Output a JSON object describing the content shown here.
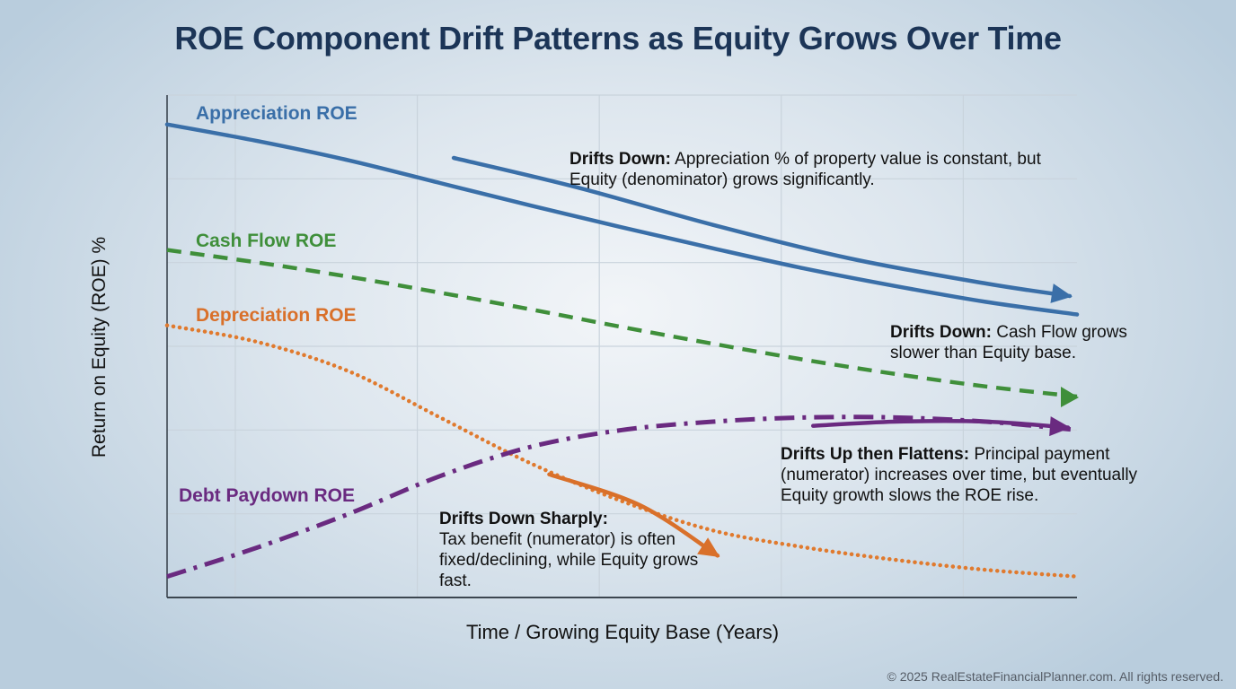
{
  "chart_data": {
    "type": "line",
    "title": "ROE Component Drift Patterns as Equity Grows Over Time",
    "xlabel": "Time / Growing Equity Base (Years)",
    "ylabel": "Return on Equity (ROE) %",
    "x_ticks_shown": false,
    "y_ticks_shown": false,
    "grid": true,
    "xlim": [
      0,
      10
    ],
    "ylim": [
      0,
      6
    ],
    "x_gridlines": [
      0.75,
      2.75,
      4.75,
      6.75,
      8.75
    ],
    "y_gridlines": [
      1,
      2,
      3,
      4,
      5,
      6
    ],
    "series": [
      {
        "name": "Appreciation ROE",
        "style": "solid",
        "color": "#3a6fa8",
        "x": [
          0,
          1,
          2,
          3,
          4,
          5,
          6,
          7,
          8,
          9,
          10
        ],
        "values": [
          5.65,
          5.45,
          5.22,
          4.95,
          4.68,
          4.42,
          4.17,
          3.93,
          3.72,
          3.53,
          3.38
        ]
      },
      {
        "name": "Cash Flow ROE",
        "style": "dashed",
        "color": "#3f8f3a",
        "x": [
          0,
          1,
          2,
          3,
          4,
          5,
          6,
          7,
          8,
          9,
          10
        ],
        "values": [
          4.15,
          4.0,
          3.83,
          3.64,
          3.44,
          3.23,
          3.03,
          2.84,
          2.67,
          2.52,
          2.4
        ]
      },
      {
        "name": "Depreciation ROE",
        "style": "dotted",
        "color": "#e07a2e",
        "x": [
          0,
          1,
          2,
          3,
          4,
          5,
          6,
          7,
          8,
          9,
          10
        ],
        "values": [
          3.25,
          3.05,
          2.7,
          2.15,
          1.6,
          1.15,
          0.8,
          0.6,
          0.45,
          0.33,
          0.25
        ]
      },
      {
        "name": "Debt Paydown ROE",
        "style": "dash-dot",
        "color": "#6a2a80",
        "x": [
          0,
          1,
          2,
          3,
          4,
          5,
          6,
          7,
          8,
          9,
          10
        ],
        "values": [
          0.25,
          0.6,
          1.0,
          1.45,
          1.8,
          2.0,
          2.1,
          2.15,
          2.15,
          2.1,
          2.0
        ]
      }
    ],
    "series_labels": [
      {
        "text": "Appreciation ROE",
        "color": "#3a6fa8"
      },
      {
        "text": "Cash Flow ROE",
        "color": "#3f8f3a"
      },
      {
        "text": "Depreciation ROE",
        "color": "#d9702a"
      },
      {
        "text": "Debt Paydown ROE",
        "color": "#6a2a80"
      }
    ],
    "annotations": [
      {
        "series": "Appreciation ROE",
        "bold": "Drifts Down:",
        "text": " Appreciation % of property value is constant, but Equity (denominator) grows significantly.",
        "arrow_color": "#3a6fa8"
      },
      {
        "series": "Cash Flow ROE",
        "bold": "Drifts Down:",
        "text": " Cash Flow grows slower than Equity base.",
        "arrow_color": "#3f8f3a"
      },
      {
        "series": "Debt Paydown ROE",
        "bold": "Drifts Up then Flattens:",
        "text": " Principal payment (numerator) increases over time, but eventually Equity growth slows the ROE rise.",
        "arrow_color": "#6a2a80"
      },
      {
        "series": "Depreciation ROE",
        "bold": "Drifts Down Sharply:",
        "text": "Tax benefit (numerator) is often fixed/declining, while Equity grows fast.",
        "arrow_color": "#d9702a"
      }
    ]
  },
  "footer": {
    "copyright": "© 2025 RealEstateFinancialPlanner.com. All rights reserved."
  }
}
